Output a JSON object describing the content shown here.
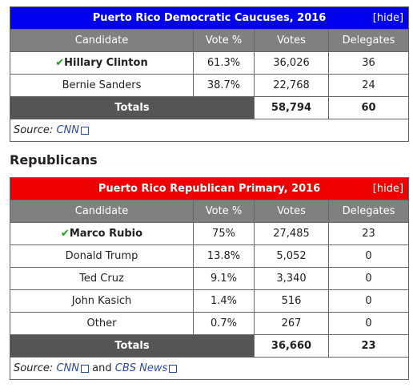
{
  "democratic": {
    "title": "Puerto Rico Democratic Caucuses, 2016",
    "toggle": "[hide]",
    "columns": [
      "Candidate",
      "Vote %",
      "Votes",
      "Delegates"
    ],
    "rows": [
      [
        "Hillary Clinton",
        "61.3%",
        "36,026",
        "36"
      ],
      [
        "Bernie Sanders",
        "38.7%",
        "22,768",
        "24"
      ]
    ],
    "totals": [
      "Totals",
      "58,794",
      "60"
    ],
    "source": {
      "label": "Source:",
      "links": [
        "CNN"
      ]
    }
  },
  "heading": "Republicans",
  "republican": {
    "title": "Puerto Rico Republican Primary, 2016",
    "toggle": "[hide]",
    "columns": [
      "Candidate",
      "Vote %",
      "Votes",
      "Delegates"
    ],
    "rows": [
      [
        "Marco Rubio",
        "75%",
        "27,485",
        "23"
      ],
      [
        "Donald Trump",
        "13.8%",
        "5,052",
        "0"
      ],
      [
        "Ted Cruz",
        "9.1%",
        "3,340",
        "0"
      ],
      [
        "John Kasich",
        "1.4%",
        "516",
        "0"
      ],
      [
        "Other",
        "0.7%",
        "267",
        "0"
      ]
    ],
    "totals": [
      "Totals",
      "36,660",
      "23"
    ],
    "source": {
      "label": "Source:",
      "links": [
        "CNN",
        "CBS News"
      ],
      "joiner": "and"
    }
  }
}
